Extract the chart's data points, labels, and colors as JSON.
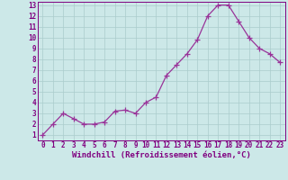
{
  "x": [
    0,
    1,
    2,
    3,
    4,
    5,
    6,
    7,
    8,
    9,
    10,
    11,
    12,
    13,
    14,
    15,
    16,
    17,
    18,
    19,
    20,
    21,
    22,
    23
  ],
  "y": [
    1,
    2,
    3,
    2.5,
    2,
    2,
    2.2,
    3.2,
    3.3,
    3,
    4,
    4.5,
    6.5,
    7.5,
    8.5,
    9.8,
    12.0,
    13.0,
    13.0,
    11.5,
    10.0,
    9.0,
    8.5,
    7.7
  ],
  "line_color": "#993399",
  "marker": "+",
  "marker_size": 4,
  "bg_color": "#cce8e8",
  "grid_color": "#aacccc",
  "xlabel": "Windchill (Refroidissement éolien,°C)",
  "xlim_min": -0.5,
  "xlim_max": 23.5,
  "ylim_min": 0.5,
  "ylim_max": 13.3,
  "xticks": [
    0,
    1,
    2,
    3,
    4,
    5,
    6,
    7,
    8,
    9,
    10,
    11,
    12,
    13,
    14,
    15,
    16,
    17,
    18,
    19,
    20,
    21,
    22,
    23
  ],
  "yticks": [
    1,
    2,
    3,
    4,
    5,
    6,
    7,
    8,
    9,
    10,
    11,
    12,
    13
  ],
  "tick_fontsize": 5.5,
  "xlabel_fontsize": 6.5,
  "tick_color": "#800080",
  "spine_color": "#800080"
}
